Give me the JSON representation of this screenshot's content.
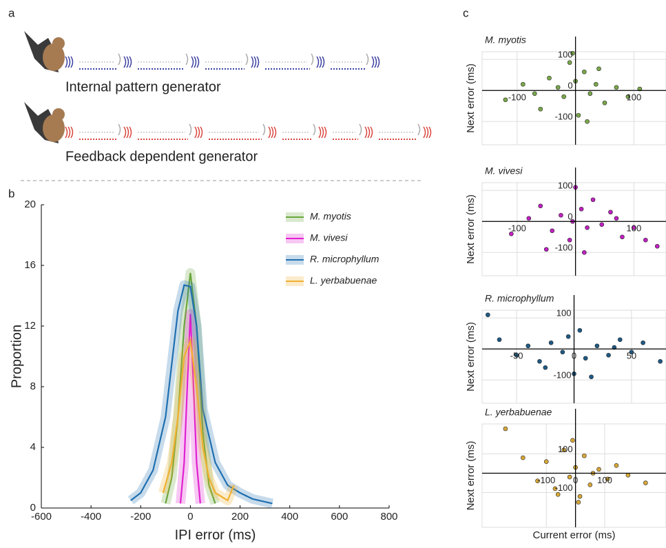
{
  "panel_labels": [
    "a",
    "b",
    "c"
  ],
  "diagram": {
    "rows": [
      {
        "text": "Internal pattern generator",
        "color": "#3a3fa0"
      },
      {
        "text": "Feedback dependent generator",
        "color": "#d9443c"
      }
    ]
  },
  "chart_data": [
    {
      "type": "line",
      "xlabel": "IPI error (ms)",
      "ylabel": "Proportion",
      "xlim": [
        -600,
        800
      ],
      "xticks": [
        -600,
        -400,
        -200,
        0,
        200,
        400,
        600,
        800
      ],
      "ylim": [
        0,
        20
      ],
      "yticks": [
        0,
        4,
        8,
        12,
        16,
        20
      ],
      "legend": "upper right",
      "series": [
        {
          "name": "M. myotis",
          "color": "#6aa63c",
          "x": [
            -100,
            -75,
            -50,
            -25,
            0,
            25,
            50,
            75,
            100
          ],
          "values": [
            0.3,
            2,
            6,
            12,
            15.5,
            12,
            5,
            1.5,
            0.3
          ]
        },
        {
          "name": "M. vivesi",
          "color": "#e020d0",
          "x": [
            -40,
            -25,
            -10,
            0,
            10,
            25,
            40
          ],
          "values": [
            0.3,
            3,
            9,
            12.8,
            9,
            3,
            0.3
          ]
        },
        {
          "name": "R. microphyllum",
          "color": "#1f6fb0",
          "x": [
            -240,
            -200,
            -150,
            -100,
            -50,
            -25,
            0,
            25,
            50,
            100,
            150,
            200,
            250,
            330
          ],
          "values": [
            0.5,
            1,
            2.5,
            6,
            13,
            14.7,
            14.6,
            12,
            6.5,
            3,
            1.5,
            1,
            0.6,
            0.3
          ]
        },
        {
          "name": "L. yerbabuenae",
          "color": "#f0b030",
          "x": [
            -110,
            -75,
            -50,
            -25,
            0,
            25,
            50,
            75,
            100,
            150,
            175
          ],
          "values": [
            1,
            3,
            6,
            10,
            11,
            8,
            4,
            2,
            1,
            0.5,
            1.5
          ]
        }
      ]
    },
    {
      "type": "scatter",
      "title": "M. myotis",
      "ylabel": "Next error (ms)",
      "color": "#7aa84a",
      "xlim": [
        -160,
        155
      ],
      "xticks": [
        -100,
        100
      ],
      "ylim": [
        -175,
        125
      ],
      "yticks": [
        -100,
        0,
        100
      ],
      "x": [
        -120,
        -90,
        -60,
        -45,
        -30,
        -20,
        -10,
        0,
        5,
        15,
        25,
        35,
        50,
        70,
        90,
        110,
        -70,
        20,
        -5,
        40
      ],
      "values": [
        -30,
        20,
        -60,
        40,
        10,
        -20,
        90,
        30,
        -80,
        60,
        -10,
        20,
        -40,
        10,
        -20,
        5,
        -10,
        -100,
        120,
        70
      ]
    },
    {
      "type": "scatter",
      "title": "M. vivesi",
      "ylabel": "Next error (ms)",
      "color": "#c020c0",
      "xlim": [
        -160,
        155
      ],
      "xticks": [
        -100,
        100
      ],
      "ylim": [
        -175,
        125
      ],
      "yticks": [
        -100,
        0,
        100
      ],
      "x": [
        -110,
        -80,
        -60,
        -40,
        -25,
        -10,
        0,
        10,
        20,
        30,
        45,
        60,
        80,
        100,
        120,
        140,
        -50,
        15,
        -5,
        70
      ],
      "values": [
        -40,
        10,
        50,
        -30,
        20,
        -60,
        110,
        40,
        -20,
        70,
        -10,
        30,
        -50,
        -20,
        -60,
        -80,
        -90,
        -100,
        0,
        10
      ]
    },
    {
      "type": "scatter",
      "title": "R. microphyllum",
      "ylabel": "Next error (ms)",
      "color": "#1e5a85",
      "xlim": [
        -80,
        80
      ],
      "xticks": [
        -50,
        0,
        50
      ],
      "ylim": [
        -175,
        125
      ],
      "yticks": [
        -100,
        100
      ],
      "x": [
        -75,
        -65,
        -50,
        -40,
        -30,
        -20,
        -10,
        -5,
        0,
        5,
        10,
        20,
        30,
        40,
        50,
        60,
        75,
        -25,
        15,
        35
      ],
      "values": [
        110,
        30,
        -20,
        10,
        -40,
        20,
        -10,
        40,
        -80,
        60,
        -30,
        10,
        -20,
        30,
        -10,
        20,
        -40,
        -60,
        -90,
        5
      ]
    },
    {
      "type": "scatter",
      "title": "L. yerbabuenae",
      "ylabel": "Next error (ms)",
      "xlabel": "Current error (ms)",
      "color": "#d8a838",
      "xlim": [
        -320,
        310
      ],
      "xticks": [
        -100,
        0,
        100
      ],
      "ylim": [
        -280,
        255
      ],
      "yticks": [
        -100,
        100
      ],
      "x": [
        -240,
        -180,
        -130,
        -100,
        -70,
        -40,
        -20,
        0,
        15,
        30,
        50,
        80,
        110,
        140,
        180,
        240,
        -60,
        10,
        -10,
        60
      ],
      "values": [
        230,
        80,
        -40,
        60,
        -80,
        120,
        -20,
        30,
        -120,
        90,
        -60,
        20,
        -30,
        40,
        -10,
        -50,
        -110,
        -150,
        170,
        0
      ]
    }
  ]
}
